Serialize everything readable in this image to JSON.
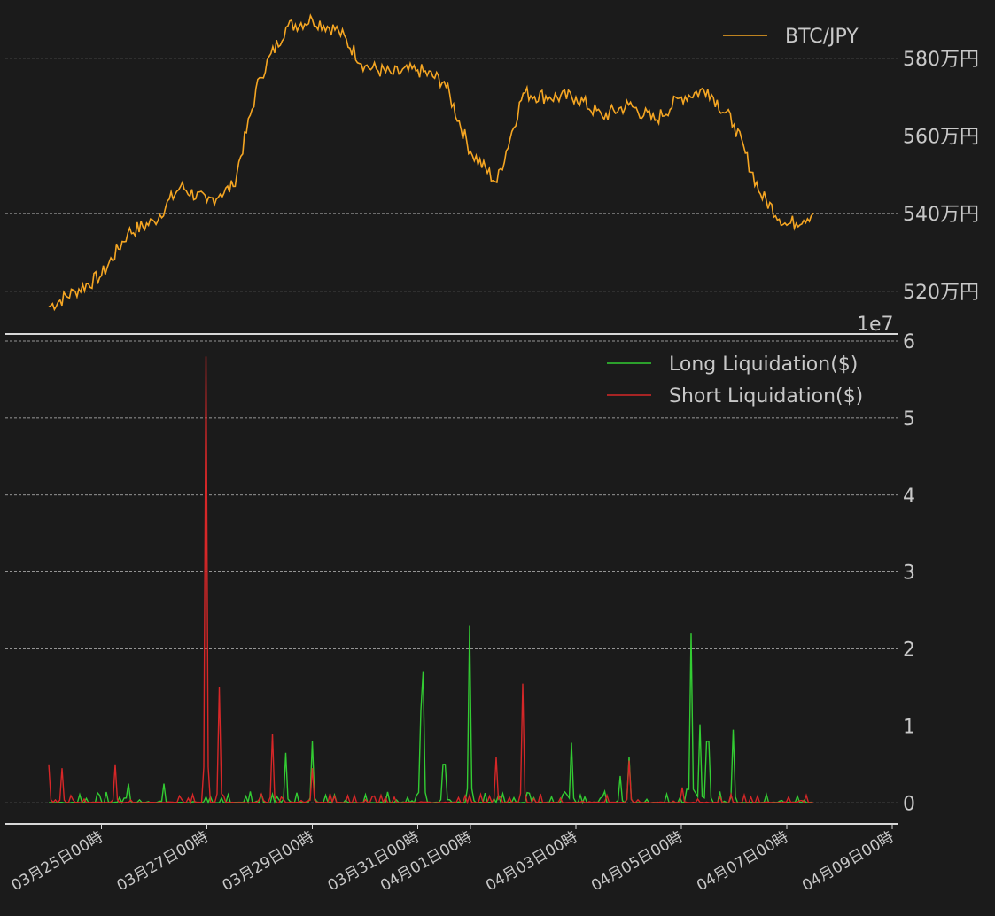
{
  "chart_data": [
    {
      "type": "line",
      "colors": {
        "btc": "#f5a623",
        "background": "#1b1b1b"
      },
      "series": [
        {
          "name": "BTC/JPY",
          "x": [
            "03月24日00時",
            "03月24日12時",
            "03月25日00時",
            "03月25日12時",
            "03月26日00時",
            "03月26日12時",
            "03月27日00時",
            "03月27日06時",
            "03月27日12時",
            "03月28日00時",
            "03月28日12時",
            "03月29日00時",
            "03月29日12時",
            "03月30日00時",
            "03月30日12時",
            "03月31日00時",
            "03月31日12時",
            "04月01日00時",
            "04月01日12時",
            "04月02日00時",
            "04月02日12時",
            "04月03日00時",
            "04月03日12時",
            "04月04日00時",
            "04月04日12時",
            "04月05日00時",
            "04月05日12時",
            "04月06日00時",
            "04月06日12時",
            "04月07日00時",
            "04月07日12时"
          ],
          "values": [
            516,
            520,
            524,
            535,
            538,
            547,
            543,
            545,
            547,
            575,
            588,
            590,
            587,
            578,
            576,
            577,
            574,
            556,
            548,
            571,
            570,
            570,
            565,
            568,
            564,
            570,
            572,
            563,
            545,
            537,
            540
          ]
        }
      ],
      "ytick_labels": [
        "520万円",
        "540万円",
        "560万円",
        "580万円"
      ],
      "yticks": [
        520,
        540,
        560,
        580
      ],
      "ylim": [
        509,
        595
      ],
      "legend": "top-right",
      "grid": true
    },
    {
      "type": "line",
      "colors": {
        "long": "#33cc33",
        "short": "#d62728"
      },
      "offset_label": "1e7",
      "ytick_labels": [
        "0",
        "1",
        "2",
        "3",
        "4",
        "5",
        "6"
      ],
      "ylim": [
        -0.25,
        6
      ],
      "grid": true,
      "legend": "top-right",
      "series": [
        {
          "name": "Long Liquidation($)",
          "points": [
            [
              "03月26日04時",
              0.25
            ],
            [
              "03月29日00時",
              0.8
            ],
            [
              "03月28日12時",
              0.65
            ],
            [
              "03月31日01時",
              1.2
            ],
            [
              "03月31日02時",
              1.7
            ],
            [
              "03月31日12時",
              0.5
            ],
            [
              "04月01日00時",
              2.3
            ],
            [
              "04月02日22時",
              0.78
            ],
            [
              "04月03日20時",
              0.35
            ],
            [
              "04月04日00時",
              0.6
            ],
            [
              "04月05日04時",
              2.2
            ],
            [
              "04月05日08時",
              1.02
            ],
            [
              "04月05日12时",
              0.8
            ],
            [
              "04月06日00时",
              0.95
            ],
            [
              "03月25日12时",
              0.25
            ]
          ]
        },
        {
          "name": "Short Liquidation($)",
          "points": [
            [
              "03月24日00時",
              0.5
            ],
            [
              "03月24日06時",
              0.45
            ],
            [
              "03月25日06時",
              0.5
            ],
            [
              "03月27日00時",
              5.8
            ],
            [
              "03月27日06時",
              1.5
            ],
            [
              "03月28日06時",
              0.9
            ],
            [
              "03月29日00时",
              0.45
            ],
            [
              "04月01日12時",
              0.6
            ],
            [
              "04月02日00時",
              1.55
            ],
            [
              "04月04日00時",
              0.55
            ],
            [
              "04月05日00時",
              0.2
            ]
          ]
        }
      ]
    }
  ],
  "xaxis": {
    "tick_labels": [
      "03月25日00時",
      "03月27日00時",
      "03月29日00時",
      "03月31日00時",
      "04月01日00時",
      "04月03日00時",
      "04月05日00時",
      "04月07日00時",
      "04月09日00時"
    ]
  }
}
